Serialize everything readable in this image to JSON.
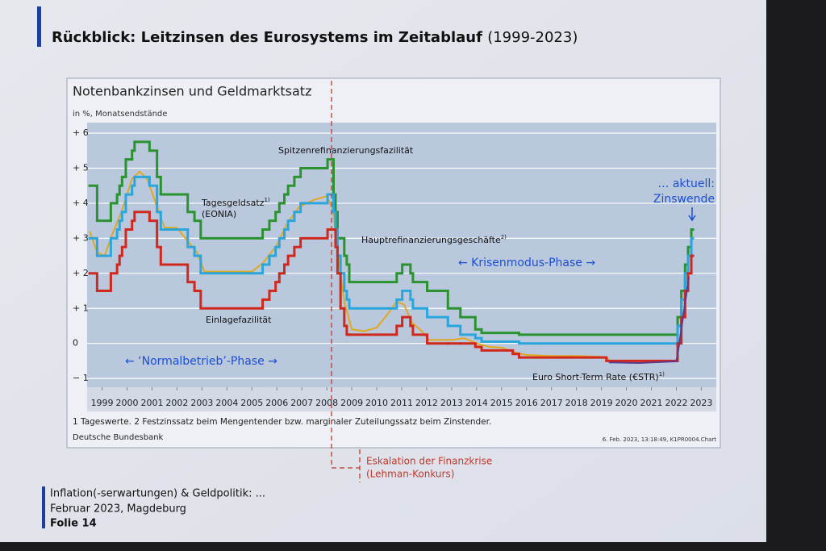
{
  "slide": {
    "title": "Rückblick: Leitzinsen des Eurosystems im Zeitablauf",
    "title_years": "(1999-2023)",
    "footer": [
      "Inflation(-serwartungen) & Geldpolitik: ...",
      "Februar 2023, Magdeburg",
      "Folie 14"
    ]
  },
  "chart_data": {
    "type": "line",
    "title": "Notenbankzinsen und Geldmarktsatz",
    "subtitle": "in %, Monatsendstände",
    "xlim": [
      1998.9,
      2024.1
    ],
    "ylim": [
      -1.25,
      6.3
    ],
    "grid": true,
    "xticks": [
      {
        "value": 1999.5,
        "label": "1999"
      },
      {
        "value": 2000.5,
        "label": "2000"
      },
      {
        "value": 2001.5,
        "label": "2001"
      },
      {
        "value": 2002.5,
        "label": "2002"
      },
      {
        "value": 2003.5,
        "label": "2003"
      },
      {
        "value": 2004.5,
        "label": "2004"
      },
      {
        "value": 2005.5,
        "label": "2005"
      },
      {
        "value": 2006.5,
        "label": "2006"
      },
      {
        "value": 2007.5,
        "label": "2007"
      },
      {
        "value": 2008.5,
        "label": "2008"
      },
      {
        "value": 2009.5,
        "label": "2009"
      },
      {
        "value": 2010.5,
        "label": "2010"
      },
      {
        "value": 2011.5,
        "label": "2011"
      },
      {
        "value": 2012.5,
        "label": "2012"
      },
      {
        "value": 2013.5,
        "label": "2013"
      },
      {
        "value": 2014.5,
        "label": "2014"
      },
      {
        "value": 2015.5,
        "label": "2015"
      },
      {
        "value": 2016.5,
        "label": "2016"
      },
      {
        "value": 2017.5,
        "label": "2017"
      },
      {
        "value": 2018.5,
        "label": "2018"
      },
      {
        "value": 2019.5,
        "label": "2019"
      },
      {
        "value": 2020.5,
        "label": "2020"
      },
      {
        "value": 2021.5,
        "label": "2021"
      },
      {
        "value": 2022.5,
        "label": "2022"
      },
      {
        "value": 2023.5,
        "label": "2023"
      }
    ],
    "yticks": [
      {
        "value": 6,
        "label": "+ 6"
      },
      {
        "value": 5,
        "label": "+ 5"
      },
      {
        "value": 4,
        "label": "+ 4"
      },
      {
        "value": 3,
        "label": "+ 3"
      },
      {
        "value": 2,
        "label": "+ 2"
      },
      {
        "value": 1,
        "label": "+ 1"
      },
      0,
      {
        "value": -1,
        "label": "− 1"
      }
    ],
    "series": [
      {
        "name": "Spitzenrefinanzierungsfazilität",
        "color": "#2a9330",
        "step": true,
        "x": [
          1999.0,
          1999.3,
          1999.85,
          2000.1,
          2000.2,
          2000.3,
          2000.45,
          2000.7,
          2000.8,
          2001.4,
          2001.7,
          2001.85,
          2002.93,
          2003.2,
          2003.45,
          2005.93,
          2006.2,
          2006.45,
          2006.6,
          2006.8,
          2006.95,
          2007.2,
          2007.45,
          2008.53,
          2008.77,
          2008.85,
          2008.93,
          2009.05,
          2009.2,
          2009.3,
          2009.4,
          2011.3,
          2011.52,
          2011.85,
          2011.95,
          2012.52,
          2013.35,
          2013.85,
          2014.45,
          2014.7,
          2016.2,
          2022.55,
          2022.7,
          2022.85,
          2022.97,
          2023.1
        ],
        "values": [
          4.5,
          3.5,
          4.0,
          4.25,
          4.5,
          4.75,
          5.25,
          5.5,
          5.75,
          5.5,
          4.75,
          4.25,
          3.75,
          3.5,
          3.0,
          3.25,
          3.5,
          3.75,
          4.0,
          4.25,
          4.5,
          4.75,
          5.0,
          5.25,
          4.25,
          3.75,
          3.0,
          3.0,
          2.5,
          2.25,
          1.75,
          2.0,
          2.25,
          2.0,
          1.75,
          1.5,
          1.0,
          0.75,
          0.4,
          0.3,
          0.25,
          0.75,
          1.5,
          2.25,
          2.75,
          3.25
        ]
      },
      {
        "name": "Hauptrefinanzierungsgeschäfte",
        "note": "2)",
        "color": "#2aa6dc",
        "step": true,
        "x": [
          1999.0,
          1999.3,
          1999.85,
          2000.1,
          2000.2,
          2000.3,
          2000.45,
          2000.7,
          2000.8,
          2001.4,
          2001.7,
          2001.85,
          2002.93,
          2003.2,
          2003.45,
          2005.93,
          2006.2,
          2006.45,
          2006.6,
          2006.8,
          2006.95,
          2007.2,
          2007.45,
          2008.53,
          2008.77,
          2008.85,
          2008.93,
          2009.05,
          2009.2,
          2009.3,
          2009.4,
          2011.3,
          2011.52,
          2011.85,
          2011.95,
          2012.52,
          2013.35,
          2013.85,
          2014.45,
          2014.7,
          2016.2,
          2022.55,
          2022.7,
          2022.85,
          2022.97,
          2023.1
        ],
        "values": [
          3.0,
          2.5,
          3.0,
          3.25,
          3.5,
          3.75,
          4.25,
          4.5,
          4.75,
          4.5,
          3.75,
          3.25,
          2.75,
          2.5,
          2.0,
          2.25,
          2.5,
          2.75,
          3.0,
          3.25,
          3.5,
          3.75,
          4.0,
          4.25,
          3.75,
          3.25,
          2.5,
          2.0,
          1.5,
          1.25,
          1.0,
          1.25,
          1.5,
          1.25,
          1.0,
          0.75,
          0.5,
          0.25,
          0.15,
          0.05,
          0.0,
          0.5,
          1.25,
          2.0,
          2.5,
          3.0
        ]
      },
      {
        "name": "Einlagefazilität",
        "color": "#d0281c",
        "step": true,
        "x": [
          1999.0,
          1999.3,
          1999.85,
          2000.1,
          2000.2,
          2000.3,
          2000.45,
          2000.7,
          2000.8,
          2001.4,
          2001.7,
          2001.85,
          2002.93,
          2003.2,
          2003.45,
          2005.93,
          2006.2,
          2006.45,
          2006.6,
          2006.8,
          2006.95,
          2007.2,
          2007.45,
          2008.53,
          2008.77,
          2008.85,
          2008.93,
          2009.05,
          2009.2,
          2009.3,
          2009.4,
          2011.3,
          2011.52,
          2011.85,
          2011.95,
          2012.52,
          2013.35,
          2013.85,
          2014.45,
          2014.7,
          2015.95,
          2016.2,
          2019.7,
          2022.55,
          2022.7,
          2022.85,
          2022.97,
          2023.1
        ],
        "values": [
          2.0,
          1.5,
          2.0,
          2.25,
          2.5,
          2.75,
          3.25,
          3.5,
          3.75,
          3.5,
          2.75,
          2.25,
          1.75,
          1.5,
          1.0,
          1.25,
          1.5,
          1.75,
          2.0,
          2.25,
          2.5,
          2.75,
          3.0,
          3.25,
          3.25,
          2.75,
          2.0,
          1.0,
          0.5,
          0.25,
          0.25,
          0.5,
          0.75,
          0.5,
          0.25,
          0.0,
          0.0,
          0.0,
          -0.1,
          -0.2,
          -0.3,
          -0.4,
          -0.5,
          0.0,
          0.75,
          1.5,
          2.0,
          2.5
        ]
      },
      {
        "name": "Tagesgeldsatz",
        "note": "1)",
        "name_line2": "(EONIA)",
        "color": "#e1a81e",
        "step": false,
        "x": [
          1999.0,
          1999.3,
          1999.6,
          1999.9,
          2000.3,
          2000.7,
          2001.0,
          2001.3,
          2001.7,
          2002.0,
          2002.5,
          2002.95,
          2003.3,
          2003.6,
          2004.5,
          2005.5,
          2005.95,
          2006.5,
          2006.9,
          2007.4,
          2007.7,
          2008.0,
          2008.5,
          2008.75,
          2008.95,
          2009.2,
          2009.5,
          2010.0,
          2010.5,
          2010.9,
          2011.3,
          2011.6,
          2011.9,
          2012.3,
          2012.6,
          2013.5,
          2014.0,
          2014.5,
          2015.0,
          2015.5,
          2016.0,
          2016.5,
          2017.5,
          2018.5,
          2019.5,
          2019.8
        ],
        "values": [
          3.2,
          2.6,
          2.5,
          3.1,
          3.8,
          4.7,
          4.9,
          4.7,
          3.9,
          3.3,
          3.3,
          2.9,
          2.6,
          2.05,
          2.05,
          2.05,
          2.3,
          2.8,
          3.4,
          3.9,
          4.0,
          4.1,
          4.2,
          3.8,
          2.5,
          1.2,
          0.4,
          0.35,
          0.45,
          0.8,
          1.2,
          1.1,
          0.6,
          0.35,
          0.1,
          0.1,
          0.15,
          0.0,
          -0.1,
          -0.12,
          -0.25,
          -0.33,
          -0.36,
          -0.36,
          -0.38,
          -0.46
        ]
      },
      {
        "name": "Euro Short-Term Rate (€STR)",
        "note": "1)",
        "color": "#5b3a8e",
        "step": false,
        "x": [
          2019.8,
          2021.0,
          2022.5,
          2022.6,
          2022.75,
          2022.9,
          2023.0
        ],
        "values": [
          -0.54,
          -0.56,
          -0.51,
          -0.09,
          0.66,
          1.4,
          1.9
        ]
      }
    ],
    "annotations": [
      "… aktuell:",
      "Zinswende",
      "← Krisenmodus-Phase →",
      "← ‘Normalbetrieb’-Phase →",
      "Eskalation der Finanzkrise",
      "(Lehman-Konkurs)"
    ],
    "footnote": "1 Tageswerte. 2 Festzinssatz beim Mengentender bzw. marginaler Zuteilungssatz beim Zinstender.",
    "source": "Deutsche Bundesbank",
    "stamp": "6. Feb. 2023, 13:18:49, K1PR0004.Chart"
  }
}
